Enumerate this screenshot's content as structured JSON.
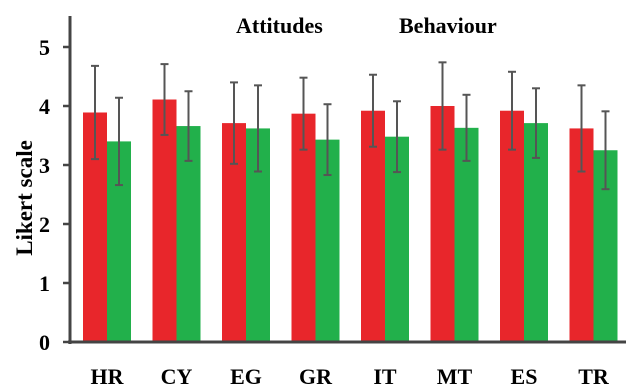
{
  "chart_data": {
    "type": "bar",
    "title": "",
    "xlabel": "",
    "ylabel": "Likert scale",
    "ylim": [
      0,
      5
    ],
    "yticks": [
      "0",
      "1",
      "2",
      "3",
      "4",
      "5"
    ],
    "grid": false,
    "legend_placement": "top-center",
    "categories": [
      "HR",
      "CY",
      "EG",
      "GR",
      "IT",
      "MT",
      "ES",
      "TR"
    ],
    "series": [
      {
        "name": "Attitudes",
        "color": "#e8262b",
        "values": [
          3.89,
          4.11,
          3.71,
          3.87,
          3.92,
          4.0,
          3.92,
          3.62
        ],
        "errors": [
          0.79,
          0.6,
          0.69,
          0.61,
          0.61,
          0.74,
          0.66,
          0.73
        ]
      },
      {
        "name": "Behaviour",
        "color": "#22b04b",
        "values": [
          3.4,
          3.66,
          3.62,
          3.43,
          3.48,
          3.63,
          3.71,
          3.25
        ],
        "errors": [
          0.74,
          0.59,
          0.73,
          0.6,
          0.6,
          0.56,
          0.59,
          0.66
        ]
      }
    ],
    "error_bar_color": "#555555"
  }
}
